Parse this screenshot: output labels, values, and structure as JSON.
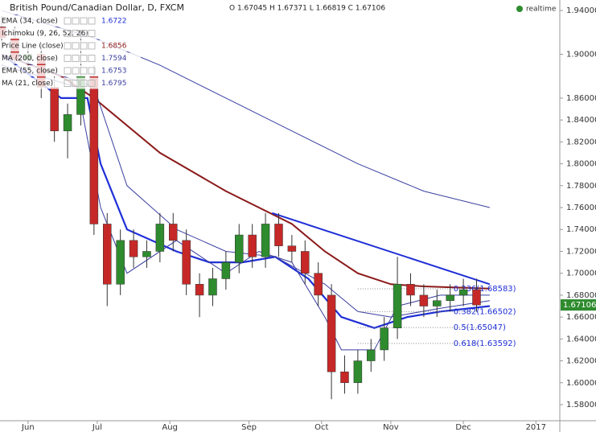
{
  "chart_data": {
    "type": "candlestick",
    "title": "British Pound/Canadian Dollar, D, FXCM",
    "ohlc_text": "O 1.67045 H 1.67371 L 1.66819 C 1.67106",
    "status": "realtime",
    "xlim": [
      -8.5,
      161
    ],
    "ylim": [
      1.5653,
      1.9496
    ],
    "xticks": [
      {
        "value": 0,
        "label": "Jun"
      },
      {
        "value": 21,
        "label": "Jul"
      },
      {
        "value": 43,
        "label": "Aug"
      },
      {
        "value": 67,
        "label": "Sep"
      },
      {
        "value": 89,
        "label": "Oct"
      },
      {
        "value": 110,
        "label": "Nov"
      },
      {
        "value": 132,
        "label": "Dec"
      },
      {
        "value": 154,
        "label": "2017"
      }
    ],
    "yticks": [
      {
        "value": 1.94,
        "label": "1.94000"
      },
      {
        "value": 1.9,
        "label": "1.90000"
      },
      {
        "value": 1.86,
        "label": "1.86000"
      },
      {
        "value": 1.84,
        "label": "1.84000"
      },
      {
        "value": 1.82,
        "label": "1.82000"
      },
      {
        "value": 1.8,
        "label": "1.80000"
      },
      {
        "value": 1.78,
        "label": "1.78000"
      },
      {
        "value": 1.76,
        "label": "1.76000"
      },
      {
        "value": 1.74,
        "label": "1.74000"
      },
      {
        "value": 1.72,
        "label": "1.72000"
      },
      {
        "value": 1.7,
        "label": "1.70000"
      },
      {
        "value": 1.68,
        "label": "1.68000"
      },
      {
        "value": 1.66,
        "label": "1.66000"
      },
      {
        "value": 1.64,
        "label": "1.64000"
      },
      {
        "value": 1.62,
        "label": "1.62000"
      },
      {
        "value": 1.6,
        "label": "1.60000"
      },
      {
        "value": 1.58,
        "label": "1.58000"
      }
    ],
    "last_price": {
      "value": 1.67106,
      "label": "1.67106",
      "color": "#2e8b2e"
    },
    "up_color": "#2e8b2e",
    "down_color": "#c62828",
    "candles": {
      "x": [
        -8,
        -4,
        0,
        4,
        8,
        12,
        16,
        20,
        24,
        28,
        32,
        36,
        40,
        44,
        48,
        52,
        56,
        60,
        64,
        68,
        72,
        76,
        80,
        84,
        88,
        92,
        96,
        100,
        104,
        108,
        112,
        116,
        120,
        124,
        128,
        132,
        136
      ],
      "open": [
        1.925,
        1.915,
        1.895,
        1.9,
        1.87,
        1.83,
        1.845,
        1.88,
        1.745,
        1.69,
        1.73,
        1.715,
        1.72,
        1.745,
        1.73,
        1.69,
        1.68,
        1.695,
        1.71,
        1.735,
        1.715,
        1.745,
        1.725,
        1.72,
        1.7,
        1.68,
        1.61,
        1.6,
        1.62,
        1.63,
        1.65,
        1.69,
        1.68,
        1.67,
        1.675,
        1.68,
        1.685
      ],
      "high": [
        1.935,
        1.925,
        1.91,
        1.91,
        1.88,
        1.855,
        1.92,
        1.89,
        1.755,
        1.74,
        1.74,
        1.73,
        1.755,
        1.755,
        1.74,
        1.7,
        1.705,
        1.72,
        1.745,
        1.745,
        1.755,
        1.755,
        1.735,
        1.73,
        1.71,
        1.69,
        1.625,
        1.63,
        1.64,
        1.66,
        1.715,
        1.7,
        1.69,
        1.685,
        1.69,
        1.695,
        1.695
      ],
      "low": [
        1.905,
        1.885,
        1.885,
        1.86,
        1.82,
        1.805,
        1.835,
        1.735,
        1.67,
        1.68,
        1.705,
        1.705,
        1.71,
        1.72,
        1.68,
        1.66,
        1.67,
        1.685,
        1.7,
        1.705,
        1.705,
        1.715,
        1.71,
        1.69,
        1.67,
        1.585,
        1.59,
        1.59,
        1.61,
        1.62,
        1.64,
        1.67,
        1.66,
        1.66,
        1.665,
        1.67,
        1.665
      ],
      "close": [
        1.915,
        1.895,
        1.9,
        1.87,
        1.83,
        1.845,
        1.88,
        1.745,
        1.69,
        1.73,
        1.715,
        1.72,
        1.745,
        1.73,
        1.69,
        1.68,
        1.695,
        1.71,
        1.735,
        1.715,
        1.745,
        1.725,
        1.72,
        1.7,
        1.68,
        1.61,
        1.6,
        1.62,
        1.63,
        1.65,
        1.69,
        1.68,
        1.67,
        1.675,
        1.68,
        1.685,
        1.671
      ]
    },
    "series": [
      {
        "name": "EMA (34, close)",
        "last": "1.6722",
        "color": "#1f2fd6",
        "width": 2.2,
        "x": [
          -8,
          10,
          18,
          22,
          30,
          45,
          55,
          65,
          75,
          85,
          95,
          105,
          115,
          125,
          140
        ],
        "values": [
          1.9,
          1.86,
          1.86,
          1.8,
          1.74,
          1.72,
          1.71,
          1.71,
          1.715,
          1.695,
          1.66,
          1.65,
          1.66,
          1.665,
          1.67
        ]
      },
      {
        "name": "Ichimoku (9, 26, 52, 26)",
        "last": null,
        "color": "#6a6a6a",
        "width": 0,
        "x": [],
        "values": []
      },
      {
        "name": "Price Line (close)",
        "last": "1.6856",
        "color": "#8b1a1a",
        "width": 2,
        "x": [
          -8,
          10,
          20,
          40,
          60,
          80,
          90,
          100,
          110,
          120,
          140
        ],
        "values": [
          1.9,
          1.88,
          1.86,
          1.81,
          1.775,
          1.745,
          1.72,
          1.7,
          1.69,
          1.688,
          1.686
        ]
      },
      {
        "name": "MA (200, close)",
        "last": "1.7594",
        "color": "#3a3fa0",
        "width": 1,
        "x": [
          -8,
          20,
          40,
          60,
          80,
          100,
          120,
          140
        ],
        "values": [
          1.94,
          1.915,
          1.89,
          1.86,
          1.83,
          1.8,
          1.775,
          1.76
        ]
      },
      {
        "name": "EMA (55, close)",
        "last": "1.6753",
        "color": "#3a3fa0",
        "width": 1,
        "x": [
          -8,
          20,
          30,
          45,
          60,
          75,
          90,
          100,
          110,
          125,
          140
        ],
        "values": [
          1.9,
          1.87,
          1.78,
          1.74,
          1.72,
          1.715,
          1.69,
          1.665,
          1.66,
          1.668,
          1.675
        ]
      },
      {
        "name": "MA (21, close)",
        "last": "1.6795",
        "color": "#3a3fa0",
        "width": 1,
        "x": [
          -8,
          15,
          22,
          30,
          45,
          60,
          70,
          80,
          90,
          95,
          105,
          112,
          125,
          140
        ],
        "values": [
          1.89,
          1.87,
          1.76,
          1.7,
          1.73,
          1.7,
          1.72,
          1.71,
          1.66,
          1.63,
          1.63,
          1.67,
          1.68,
          1.68
        ]
      }
    ],
    "trendline": {
      "color": "#1f2fd6",
      "x": [
        74,
        140
      ],
      "values": [
        1.755,
        1.69
      ]
    },
    "fib_levels": [
      {
        "value": 1.68583,
        "label": "0.236(1.68583)"
      },
      {
        "value": 1.66502,
        "label": "0.382(1.66502)"
      },
      {
        "value": 1.65047,
        "label": "0.5(1.65047)"
      },
      {
        "value": 1.63592,
        "label": "0.618(1.63592)"
      }
    ],
    "fib_x": 100
  }
}
